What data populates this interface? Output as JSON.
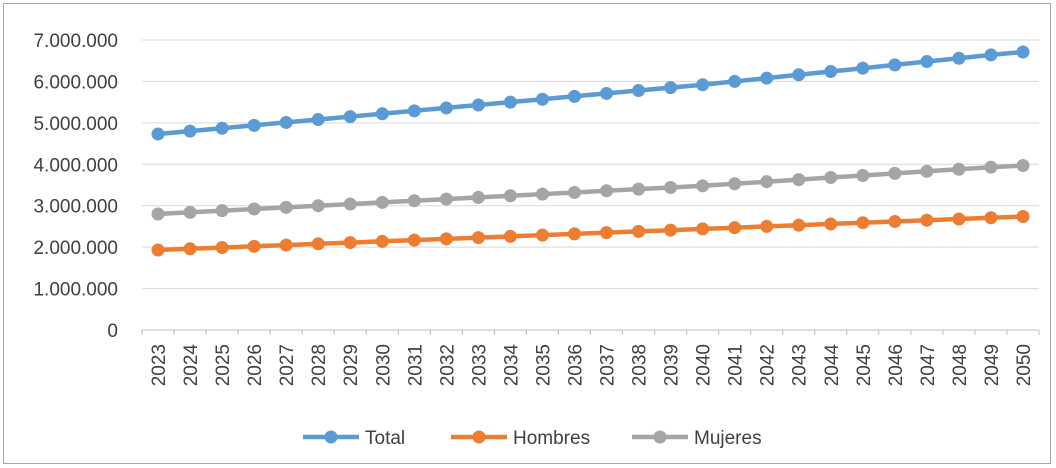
{
  "chart_data": {
    "type": "line",
    "title": "",
    "xlabel": "",
    "ylabel": "",
    "x": [
      "2023",
      "2024",
      "2025",
      "2026",
      "2027",
      "2028",
      "2029",
      "2030",
      "2031",
      "2032",
      "2033",
      "2034",
      "2035",
      "2036",
      "2037",
      "2038",
      "2039",
      "2040",
      "2041",
      "2042",
      "2043",
      "2044",
      "2045",
      "2046",
      "2047",
      "2048",
      "2049",
      "2050"
    ],
    "ylim": [
      0,
      7000000
    ],
    "yticks": [
      0,
      1000000,
      2000000,
      3000000,
      4000000,
      5000000,
      6000000,
      7000000
    ],
    "ytick_labels": [
      "0",
      "1.000.000",
      "2.000.000",
      "3.000.000",
      "4.000.000",
      "5.000.000",
      "6.000.000",
      "7.000.000"
    ],
    "grid": true,
    "legend_position": "bottom",
    "series": [
      {
        "name": "Total",
        "color": "#5b9bd5",
        "values": [
          4730000,
          4800000,
          4870000,
          4940000,
          5010000,
          5080000,
          5150000,
          5220000,
          5290000,
          5360000,
          5430000,
          5500000,
          5570000,
          5640000,
          5710000,
          5780000,
          5850000,
          5920000,
          6000000,
          6080000,
          6160000,
          6240000,
          6320000,
          6400000,
          6480000,
          6560000,
          6640000,
          6710000
        ]
      },
      {
        "name": "Hombres",
        "color": "#ed7d31",
        "values": [
          1930000,
          1960000,
          1990000,
          2020000,
          2050000,
          2080000,
          2110000,
          2140000,
          2170000,
          2200000,
          2230000,
          2260000,
          2290000,
          2320000,
          2350000,
          2380000,
          2410000,
          2440000,
          2470000,
          2500000,
          2530000,
          2560000,
          2590000,
          2620000,
          2650000,
          2680000,
          2710000,
          2740000
        ]
      },
      {
        "name": "Mujeres",
        "color": "#a5a5a5",
        "values": [
          2800000,
          2840000,
          2880000,
          2920000,
          2960000,
          3000000,
          3040000,
          3080000,
          3120000,
          3160000,
          3200000,
          3240000,
          3280000,
          3320000,
          3360000,
          3400000,
          3440000,
          3480000,
          3530000,
          3580000,
          3630000,
          3680000,
          3730000,
          3780000,
          3830000,
          3880000,
          3930000,
          3970000
        ]
      }
    ]
  },
  "colors": {
    "gridline": "#d9d9d9",
    "axis": "#bfbfbf",
    "text": "#404040"
  }
}
